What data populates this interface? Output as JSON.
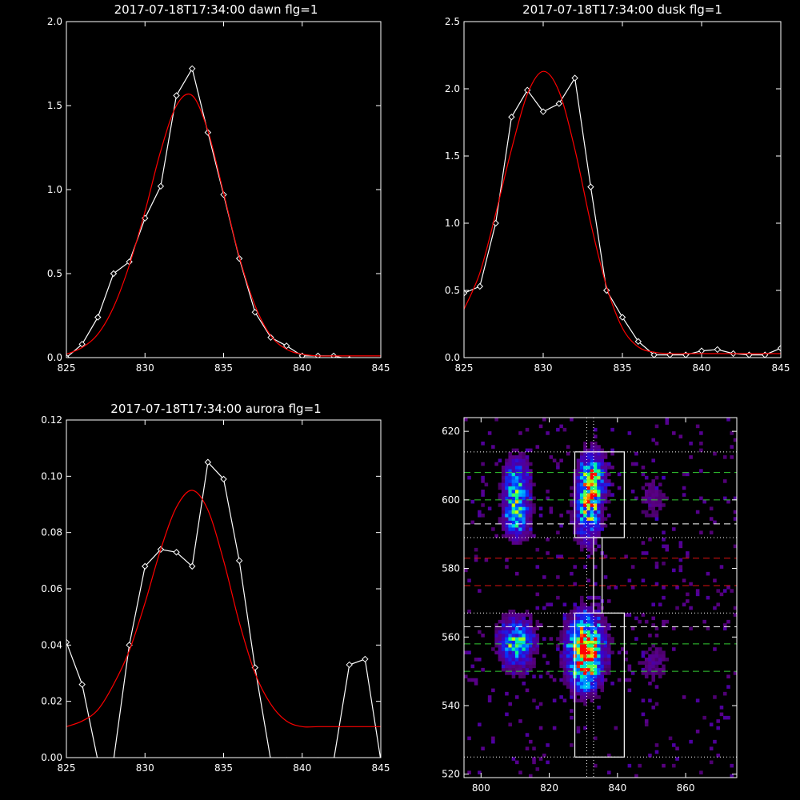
{
  "chart_data": [
    {
      "type": "line",
      "title": "2017-07-18T17:34:00 dawn flg=1",
      "xlim": [
        825,
        845
      ],
      "ylim": [
        0,
        2.0
      ],
      "xticks": [
        825,
        830,
        835,
        840,
        845
      ],
      "yticks": [
        0.0,
        0.5,
        1.0,
        1.5,
        2.0
      ],
      "ytick_labels": [
        "0.0",
        "0.5",
        "1.0",
        "1.5",
        "2.0"
      ],
      "series": [
        {
          "role": "measured",
          "color": "#ffffff",
          "markers": true,
          "x": [
            825,
            826,
            827,
            828,
            829,
            830,
            831,
            832,
            833,
            834,
            835,
            836,
            837,
            838,
            839,
            840,
            841,
            842,
            843,
            844,
            845
          ],
          "y": [
            0.0,
            0.08,
            0.24,
            0.5,
            0.57,
            0.83,
            1.02,
            1.56,
            1.72,
            1.34,
            0.97,
            0.59,
            0.27,
            0.12,
            0.07,
            0.01,
            0.01,
            0.01,
            -0.01,
            -0.02,
            -0.02
          ]
        },
        {
          "role": "fit",
          "color": "#ff0000",
          "markers": false,
          "x": [
            825,
            826,
            827,
            828,
            829,
            830,
            831,
            832,
            833,
            834,
            835,
            836,
            837,
            838,
            839,
            840,
            841,
            842,
            843,
            844,
            845
          ],
          "y": [
            0.02,
            0.06,
            0.14,
            0.3,
            0.55,
            0.87,
            1.23,
            1.5,
            1.56,
            1.35,
            0.98,
            0.6,
            0.31,
            0.13,
            0.05,
            0.02,
            0.01,
            0.01,
            0.01,
            0.01,
            0.01
          ]
        }
      ]
    },
    {
      "type": "line",
      "title": "2017-07-18T17:34:00 dusk flg=1",
      "xlim": [
        825,
        845
      ],
      "ylim": [
        0,
        2.5
      ],
      "xticks": [
        825,
        830,
        835,
        840,
        845
      ],
      "yticks": [
        0.0,
        0.5,
        1.0,
        1.5,
        2.0,
        2.5
      ],
      "ytick_labels": [
        "0.0",
        "0.5",
        "1.0",
        "1.5",
        "2.0",
        "2.5"
      ],
      "series": [
        {
          "role": "measured",
          "color": "#ffffff",
          "markers": true,
          "x": [
            825,
            826,
            827,
            828,
            829,
            830,
            831,
            832,
            833,
            834,
            835,
            836,
            837,
            838,
            839,
            840,
            841,
            842,
            843,
            844,
            845
          ],
          "y": [
            0.48,
            0.53,
            1.0,
            1.79,
            1.99,
            1.83,
            1.89,
            2.08,
            1.27,
            0.5,
            0.3,
            0.12,
            0.02,
            0.02,
            0.02,
            0.05,
            0.06,
            0.03,
            0.02,
            0.02,
            0.07
          ]
        },
        {
          "role": "fit",
          "color": "#ff0000",
          "markers": false,
          "x": [
            825,
            826,
            827,
            828,
            829,
            830,
            831,
            832,
            833,
            834,
            835,
            836,
            837,
            838,
            839,
            840,
            841,
            842,
            843,
            844,
            845
          ],
          "y": [
            0.36,
            0.63,
            1.07,
            1.55,
            1.96,
            2.13,
            1.98,
            1.55,
            1.0,
            0.53,
            0.22,
            0.08,
            0.04,
            0.03,
            0.03,
            0.03,
            0.03,
            0.03,
            0.03,
            0.03,
            0.03
          ]
        }
      ]
    },
    {
      "type": "line",
      "title": "2017-07-18T17:34:00 aurora flg=1",
      "xlim": [
        825,
        845
      ],
      "ylim": [
        0,
        0.12
      ],
      "xticks": [
        825,
        830,
        835,
        840,
        845
      ],
      "yticks": [
        0.0,
        0.02,
        0.04,
        0.06,
        0.08,
        0.1,
        0.12
      ],
      "ytick_labels": [
        "0.00",
        "0.02",
        "0.04",
        "0.06",
        "0.08",
        "0.10",
        "0.12"
      ],
      "series": [
        {
          "role": "measured",
          "color": "#ffffff",
          "markers": true,
          "x": [
            825,
            826,
            827,
            828,
            829,
            830,
            831,
            832,
            833,
            834,
            835,
            836,
            837,
            838,
            839,
            840,
            841,
            842,
            843,
            844,
            845
          ],
          "y": [
            0.041,
            0.026,
            -0.001,
            -0.001,
            0.04,
            0.068,
            0.074,
            0.073,
            0.068,
            0.105,
            0.099,
            0.07,
            0.032,
            -0.001,
            -0.001,
            -0.001,
            -0.001,
            -0.001,
            0.033,
            0.035,
            -0.001
          ]
        },
        {
          "role": "fit",
          "color": "#ff0000",
          "markers": false,
          "x": [
            825,
            826,
            827,
            828,
            829,
            830,
            831,
            832,
            833,
            834,
            835,
            836,
            837,
            838,
            839,
            840,
            841,
            842,
            843,
            844,
            845
          ],
          "y": [
            0.011,
            0.013,
            0.017,
            0.026,
            0.038,
            0.055,
            0.074,
            0.089,
            0.095,
            0.088,
            0.07,
            0.048,
            0.03,
            0.019,
            0.013,
            0.011,
            0.011,
            0.011,
            0.011,
            0.011,
            0.011
          ]
        }
      ]
    },
    {
      "type": "heatmap",
      "xlim": [
        795,
        875
      ],
      "ylim": [
        519,
        624
      ],
      "xticks": [
        800,
        820,
        840,
        860
      ],
      "yticks": [
        520,
        540,
        560,
        580,
        600,
        620
      ],
      "clusters": [
        {
          "x": 810,
          "y": 604,
          "sx": 2.5,
          "sy": 5,
          "peak": 0.62
        },
        {
          "x": 810,
          "y": 594,
          "sx": 2.5,
          "sy": 4,
          "peak": 0.55
        },
        {
          "x": 832,
          "y": 606,
          "sx": 2.5,
          "sy": 5,
          "peak": 0.75
        },
        {
          "x": 831,
          "y": 596,
          "sx": 2.5,
          "sy": 6,
          "peak": 0.62
        },
        {
          "x": 810,
          "y": 558,
          "sx": 3.5,
          "sy": 5,
          "peak": 0.6
        },
        {
          "x": 830,
          "y": 557,
          "sx": 3.5,
          "sy": 6,
          "peak": 1.0
        },
        {
          "x": 830,
          "y": 548,
          "sx": 3.0,
          "sy": 4,
          "peak": 0.4
        },
        {
          "x": 850,
          "y": 552,
          "sx": 3.0,
          "sy": 4,
          "peak": 0.18
        },
        {
          "x": 850,
          "y": 600,
          "sx": 3.0,
          "sy": 5,
          "peak": 0.16
        }
      ],
      "boxes": [
        {
          "x0": 827.5,
          "x1": 842,
          "y0": 589,
          "y1": 614
        },
        {
          "x0": 827.5,
          "x1": 842,
          "y0": 525,
          "y1": 567
        }
      ],
      "connector": {
        "x0": 833,
        "x1": 835.5,
        "y0": 567,
        "y1": 589
      },
      "vlines": [
        831,
        833
      ],
      "hlines_dotted_white": [
        614,
        589,
        567,
        525
      ],
      "hlines_dashed_green": [
        608,
        600,
        558,
        550
      ],
      "hlines_dashed_white": [
        593,
        563
      ],
      "hlines_dashed_red": [
        583,
        575
      ]
    }
  ]
}
